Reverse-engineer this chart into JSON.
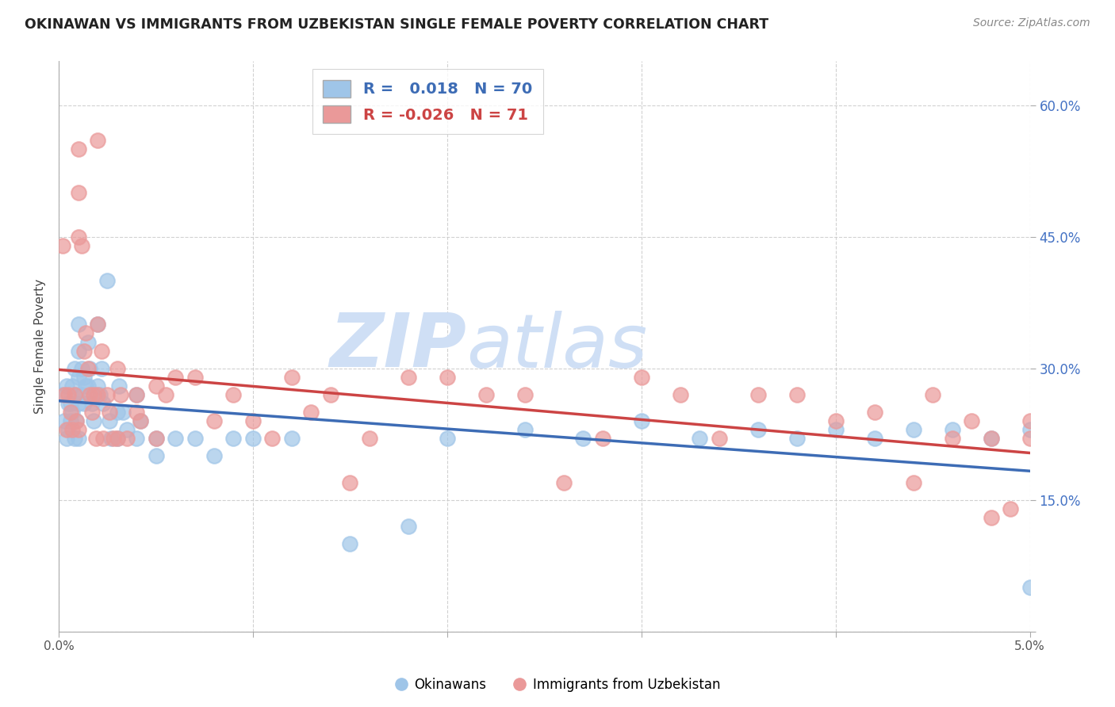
{
  "title": "OKINAWAN VS IMMIGRANTS FROM UZBEKISTAN SINGLE FEMALE POVERTY CORRELATION CHART",
  "source": "Source: ZipAtlas.com",
  "ylabel": "Single Female Poverty",
  "x_min": 0.0,
  "x_max": 0.05,
  "y_min": 0.0,
  "y_max": 0.65,
  "x_ticks": [
    0.0,
    0.01,
    0.02,
    0.03,
    0.04,
    0.05
  ],
  "x_tick_labels": [
    "0.0%",
    "",
    "",
    "",
    "",
    "5.0%"
  ],
  "y_ticks": [
    0.0,
    0.15,
    0.3,
    0.45,
    0.6
  ],
  "y_tick_labels": [
    "",
    "15.0%",
    "30.0%",
    "45.0%",
    "60.0%"
  ],
  "blue_color": "#9fc5e8",
  "pink_color": "#ea9999",
  "blue_line_color": "#3d6cb5",
  "pink_line_color": "#cc4444",
  "r_blue": 0.018,
  "n_blue": 70,
  "r_pink": -0.026,
  "n_pink": 71,
  "watermark_zip": "ZIP",
  "watermark_atlas": "atlas",
  "watermark_color": "#cfdff5",
  "background_color": "#ffffff",
  "grid_color": "#cccccc",
  "blue_scatter_x": [
    0.0002,
    0.0003,
    0.0004,
    0.0004,
    0.0005,
    0.0005,
    0.0006,
    0.0006,
    0.0007,
    0.0007,
    0.0008,
    0.0008,
    0.0009,
    0.0009,
    0.001,
    0.001,
    0.001,
    0.001,
    0.001,
    0.0012,
    0.0012,
    0.0013,
    0.0013,
    0.0014,
    0.0015,
    0.0015,
    0.0016,
    0.0017,
    0.0018,
    0.0019,
    0.002,
    0.002,
    0.0021,
    0.0022,
    0.0023,
    0.0025,
    0.0026,
    0.0027,
    0.003,
    0.003,
    0.0031,
    0.0033,
    0.0035,
    0.004,
    0.004,
    0.0042,
    0.005,
    0.005,
    0.006,
    0.007,
    0.008,
    0.009,
    0.01,
    0.012,
    0.015,
    0.018,
    0.02,
    0.024,
    0.027,
    0.03,
    0.033,
    0.036,
    0.038,
    0.04,
    0.042,
    0.044,
    0.046,
    0.048,
    0.05,
    0.05
  ],
  "blue_scatter_y": [
    0.27,
    0.24,
    0.22,
    0.28,
    0.26,
    0.23,
    0.26,
    0.24,
    0.28,
    0.25,
    0.3,
    0.22,
    0.27,
    0.24,
    0.35,
    0.32,
    0.29,
    0.26,
    0.22,
    0.3,
    0.27,
    0.29,
    0.26,
    0.28,
    0.33,
    0.28,
    0.3,
    0.26,
    0.24,
    0.27,
    0.35,
    0.28,
    0.27,
    0.3,
    0.26,
    0.4,
    0.24,
    0.22,
    0.25,
    0.22,
    0.28,
    0.25,
    0.23,
    0.27,
    0.22,
    0.24,
    0.22,
    0.2,
    0.22,
    0.22,
    0.2,
    0.22,
    0.22,
    0.22,
    0.1,
    0.12,
    0.22,
    0.23,
    0.22,
    0.24,
    0.22,
    0.23,
    0.22,
    0.23,
    0.22,
    0.23,
    0.23,
    0.22,
    0.23,
    0.05
  ],
  "pink_scatter_x": [
    0.0002,
    0.0003,
    0.0004,
    0.0005,
    0.0006,
    0.0007,
    0.0008,
    0.0009,
    0.001,
    0.001,
    0.001,
    0.0012,
    0.0013,
    0.0014,
    0.0015,
    0.0016,
    0.0017,
    0.0018,
    0.0019,
    0.002,
    0.002,
    0.0022,
    0.0023,
    0.0025,
    0.0026,
    0.0028,
    0.003,
    0.003,
    0.0032,
    0.0035,
    0.004,
    0.004,
    0.0042,
    0.005,
    0.005,
    0.0055,
    0.006,
    0.007,
    0.008,
    0.009,
    0.01,
    0.011,
    0.012,
    0.013,
    0.014,
    0.015,
    0.016,
    0.018,
    0.02,
    0.022,
    0.024,
    0.026,
    0.028,
    0.03,
    0.032,
    0.034,
    0.036,
    0.038,
    0.04,
    0.042,
    0.044,
    0.046,
    0.048,
    0.049,
    0.05,
    0.05,
    0.045,
    0.047,
    0.048,
    0.002,
    0.001
  ],
  "pink_scatter_y": [
    0.44,
    0.27,
    0.23,
    0.27,
    0.25,
    0.23,
    0.27,
    0.24,
    0.5,
    0.45,
    0.23,
    0.44,
    0.32,
    0.34,
    0.3,
    0.27,
    0.25,
    0.27,
    0.22,
    0.35,
    0.27,
    0.32,
    0.22,
    0.27,
    0.25,
    0.22,
    0.3,
    0.22,
    0.27,
    0.22,
    0.27,
    0.25,
    0.24,
    0.28,
    0.22,
    0.27,
    0.29,
    0.29,
    0.24,
    0.27,
    0.24,
    0.22,
    0.29,
    0.25,
    0.27,
    0.17,
    0.22,
    0.29,
    0.29,
    0.27,
    0.27,
    0.17,
    0.22,
    0.29,
    0.27,
    0.22,
    0.27,
    0.27,
    0.24,
    0.25,
    0.17,
    0.22,
    0.13,
    0.14,
    0.24,
    0.22,
    0.27,
    0.24,
    0.22,
    0.56,
    0.55
  ]
}
